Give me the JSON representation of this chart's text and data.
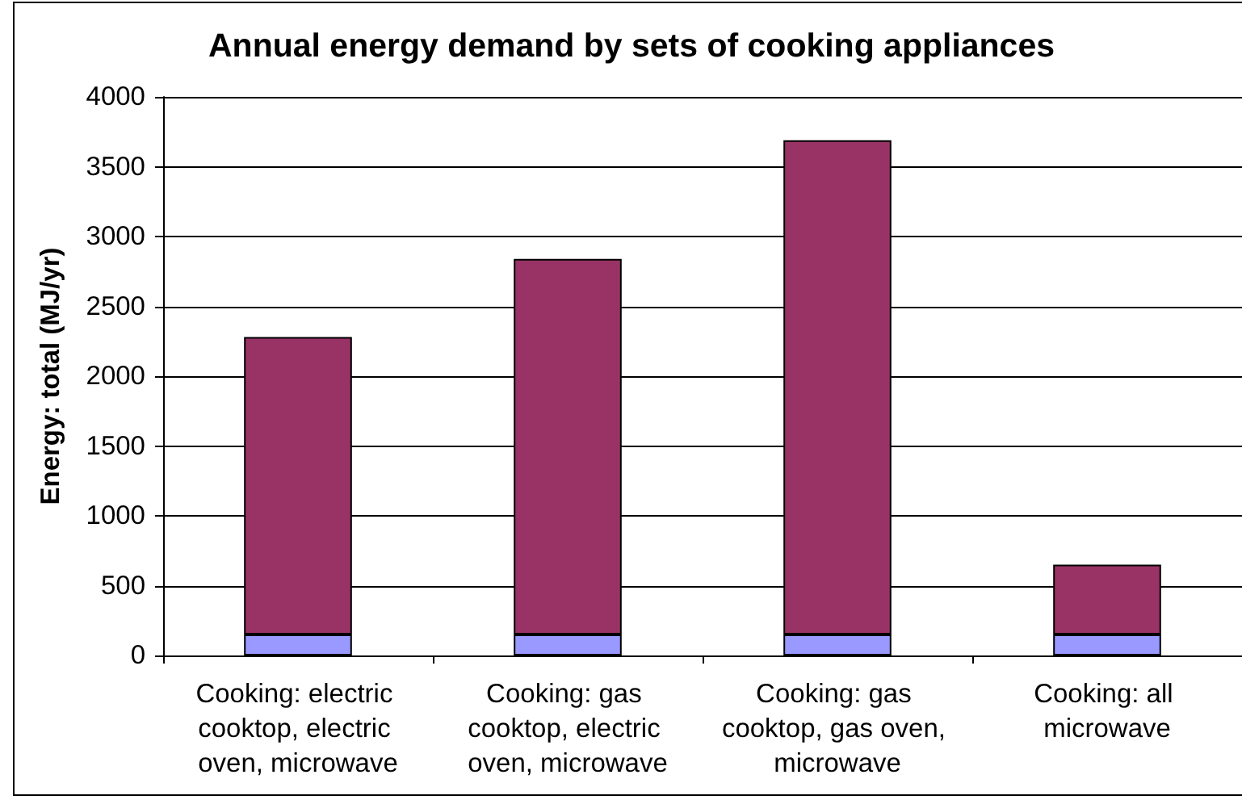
{
  "chart_data": {
    "type": "bar",
    "title": "Annual energy demand by sets of cooking appliances",
    "ylabel": "Energy: total (MJ/yr)",
    "categories": [
      "Cooking: electric cooktop, electric oven, microwave",
      "Cooking: gas cooktop, electric oven, microwave",
      "Cooking: gas cooktop, gas oven, microwave",
      "Cooking: all microwave"
    ],
    "series": [
      {
        "color": "#9999ff",
        "values": [
          150,
          150,
          150,
          150
        ]
      },
      {
        "color": "#993366",
        "values": [
          2130,
          2690,
          3540,
          500
        ]
      }
    ],
    "stacked": true,
    "ylim": [
      0,
      4000
    ],
    "yticks": [
      0,
      500,
      1000,
      1500,
      2000,
      2500,
      3000,
      3500,
      4000
    ],
    "grid": "y"
  }
}
